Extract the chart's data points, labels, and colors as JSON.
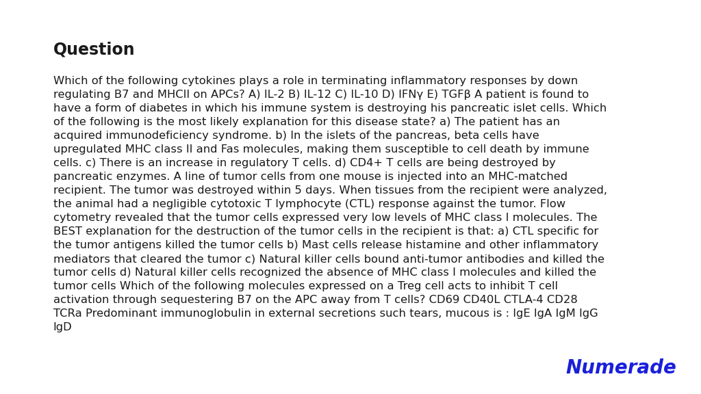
{
  "background_color": "#ffffff",
  "title": "Question",
  "title_fontsize": 17,
  "title_fontweight": "bold",
  "body_text": "Which of the following cytokines plays a role in terminating inflammatory responses by down\nregulating B7 and MHCII on APCs? A) IL-2 B) IL-12 C) IL-10 D) IFNγ E) TGFβ A patient is found to\nhave a form of diabetes in which his immune system is destroying his pancreatic islet cells. Which\nof the following is the most likely explanation for this disease state? a) The patient has an\nacquired immunodeficiency syndrome. b) In the islets of the pancreas, beta cells have\nupregulated MHC class II and Fas molecules, making them susceptible to cell death by immune\ncells. c) There is an increase in regulatory T cells. d) CD4+ T cells are being destroyed by\npancreatic enzymes. A line of tumor cells from one mouse is injected into an MHC-matched\nrecipient. The tumor was destroyed within 5 days. When tissues from the recipient were analyzed,\nthe animal had a negligible cytotoxic T lymphocyte (CTL) response against the tumor. Flow\ncytometry revealed that the tumor cells expressed very low levels of MHC class I molecules. The\nBEST explanation for the destruction of the tumor cells in the recipient is that: a) CTL specific for\nthe tumor antigens killed the tumor cells b) Mast cells release histamine and other inflammatory\nmediators that cleared the tumor c) Natural killer cells bound anti-tumor antibodies and killed the\ntumor cells d) Natural killer cells recognized the absence of MHC class I molecules and killed the\ntumor cells Which of the following molecules expressed on a Treg cell acts to inhibit T cell\nactivation through sequestering B7 on the APC away from T cells? CD69 CD40L CTLA-4 CD28\nTCRa Predominant immunoglobulin in external secretions such tears, mucous is : IgE IgA IgM IgG\nIgD",
  "body_fontsize": 11.8,
  "body_color": "#1a1a1a",
  "logo_text": "Numerade",
  "logo_color": "#1a1fdb",
  "logo_fontsize": 20
}
